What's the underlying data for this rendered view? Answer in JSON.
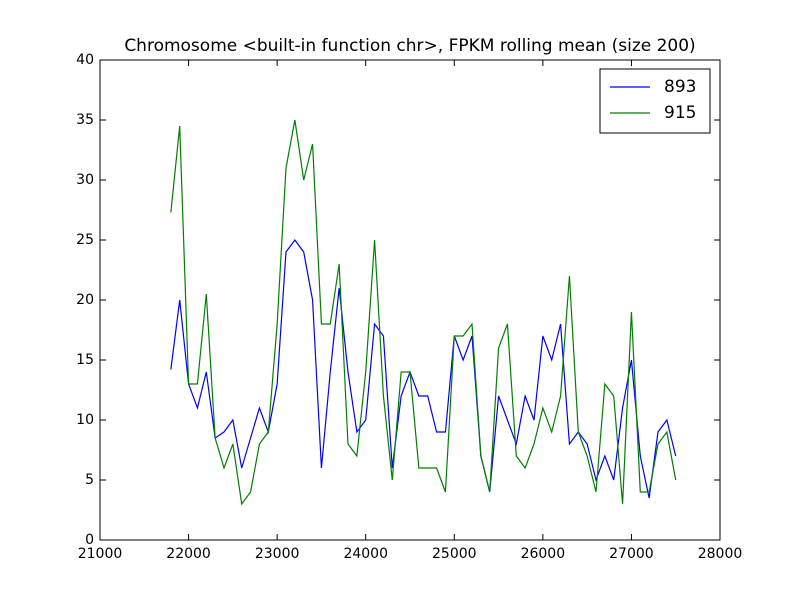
{
  "chart_data": {
    "type": "line",
    "title": "Chromosome <built-in function chr>, FPKM rolling mean (size 200)",
    "x": [
      21800,
      21900,
      22000,
      22100,
      22200,
      22300,
      22400,
      22500,
      22600,
      22700,
      22800,
      22900,
      23000,
      23100,
      23200,
      23300,
      23400,
      23500,
      23600,
      23700,
      23800,
      23900,
      24000,
      24100,
      24200,
      24300,
      24400,
      24500,
      24600,
      24700,
      24800,
      24900,
      25000,
      25100,
      25200,
      25300,
      25400,
      25500,
      25600,
      25700,
      25800,
      25900,
      26000,
      26100,
      26200,
      26300,
      26400,
      26500,
      26600,
      26700,
      26800,
      26900,
      27000,
      27100,
      27200,
      27300,
      27400,
      27500
    ],
    "series": [
      {
        "name": "893",
        "color": "#0000ff",
        "values": [
          14.2,
          20,
          13,
          11,
          14,
          8.5,
          9,
          10,
          6,
          8.5,
          11,
          9,
          13,
          24,
          25,
          24,
          20,
          6,
          14,
          21,
          14,
          9,
          10,
          18,
          17,
          6,
          12,
          14,
          12,
          12,
          9,
          9,
          17,
          15,
          17,
          7,
          4,
          12,
          10,
          8,
          12,
          10,
          17,
          15,
          18,
          8,
          9,
          8,
          5,
          7,
          5,
          11,
          15,
          7,
          3.5,
          9,
          10,
          7
        ]
      },
      {
        "name": "915",
        "color": "#008000",
        "values": [
          27.3,
          34.5,
          13,
          13,
          20.5,
          8.5,
          6,
          8,
          3,
          4,
          8,
          9,
          18,
          31,
          35,
          30,
          33,
          18,
          18,
          23,
          8,
          7,
          14,
          25,
          12,
          5,
          14,
          14,
          6,
          6,
          6,
          4,
          17,
          17,
          18,
          7,
          4,
          16,
          18,
          7,
          6,
          8,
          11,
          9,
          12,
          22,
          9,
          7,
          4,
          13,
          12,
          3,
          19,
          4,
          4,
          8,
          9,
          5
        ]
      }
    ],
    "xlim": [
      21000,
      28000
    ],
    "xticks": [
      21000,
      22000,
      23000,
      24000,
      25000,
      26000,
      27000,
      28000
    ],
    "ylim": [
      0,
      40
    ],
    "yticks": [
      0,
      5,
      10,
      15,
      20,
      25,
      30,
      35,
      40
    ],
    "grid": false,
    "legend": "upper right"
  }
}
